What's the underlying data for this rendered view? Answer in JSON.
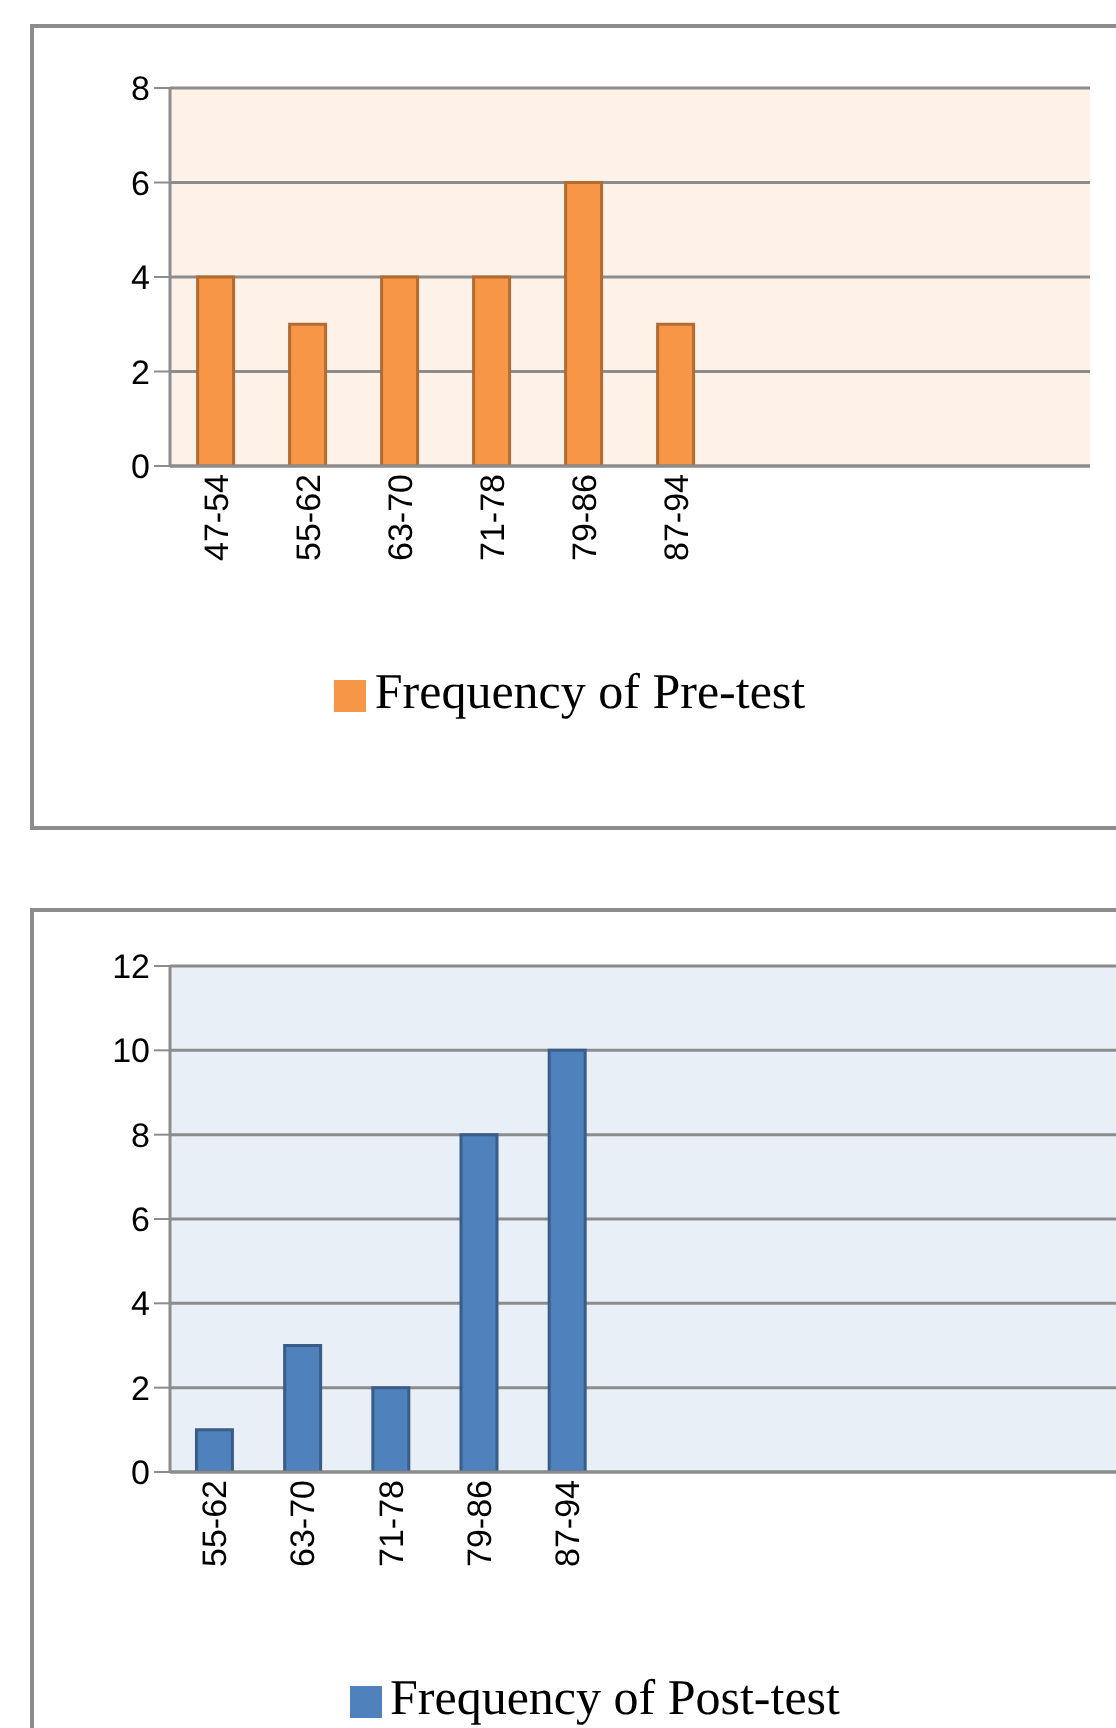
{
  "chart_data": [
    {
      "type": "bar",
      "categories": [
        "47-54",
        "55-62",
        "63-70",
        "71-78",
        "79-86",
        "87-94",
        null,
        null,
        null,
        null
      ],
      "series": [
        {
          "name": "Frequency of Pre-test",
          "color": "#f79646",
          "values": [
            4,
            3,
            4,
            4,
            6,
            3,
            null,
            null,
            null,
            null
          ]
        }
      ],
      "ylim": [
        0,
        8
      ],
      "yticks": [
        0,
        2,
        4,
        6,
        8
      ],
      "grid": "y",
      "legend": "bottom"
    },
    {
      "type": "bar",
      "categories": [
        "55-62",
        "63-70",
        "71-78",
        "79-86",
        "87-94",
        null,
        null,
        null,
        null,
        null,
        null
      ],
      "series": [
        {
          "name": "Frequency of Post-test",
          "color": "#4f81bd",
          "values": [
            1,
            3,
            2,
            8,
            10,
            null,
            null,
            null,
            null,
            null,
            null
          ]
        }
      ],
      "ylim": [
        0,
        12
      ],
      "yticks": [
        0,
        2,
        4,
        6,
        8,
        10,
        12
      ],
      "grid": "y",
      "legend": "bottom"
    }
  ]
}
